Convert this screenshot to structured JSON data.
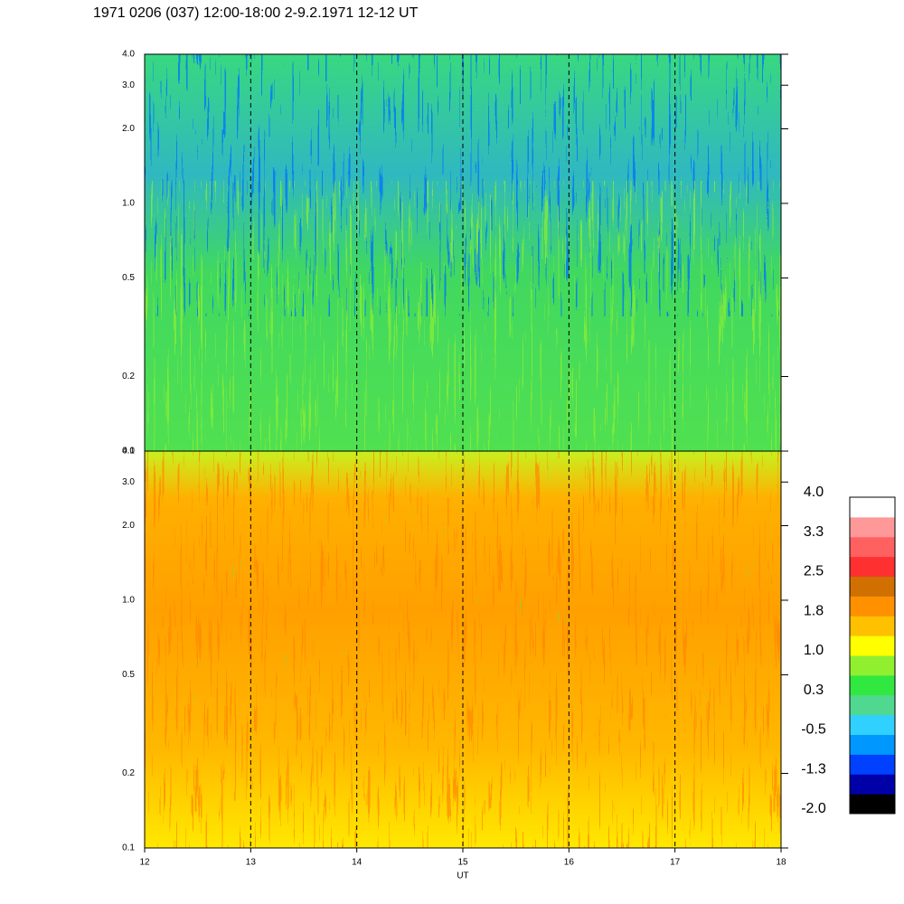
{
  "chart_data": [
    {
      "type": "spectrogram",
      "title": "1971 0206 (037) 12:00-18:00 2-9.2.1971  12-12 UT",
      "y_scale": "log",
      "ylim": [
        0.1,
        4.0
      ],
      "yticks": [
        0.1,
        0.2,
        0.5,
        {
          "value": 1,
          "label": "1.0"
        },
        {
          "value": 2,
          "label": "2.0"
        },
        {
          "value": 3,
          "label": "3.0"
        },
        {
          "value": 4,
          "label": "4.0"
        }
      ]
    },
    {
      "type": "spectrogram",
      "xlabel": "UT",
      "xlim": [
        12,
        18
      ],
      "xticks": [
        12,
        13,
        14,
        15,
        16,
        17,
        18
      ],
      "y_scale": "log",
      "ylim": [
        0.1,
        4.0
      ],
      "yticks": [
        0.1,
        0.2,
        0.5,
        {
          "value": 1,
          "label": "1.0"
        },
        {
          "value": 2,
          "label": "2.0"
        },
        {
          "value": 3,
          "label": "3.0"
        },
        {
          "value": 4,
          "label": "4.0"
        }
      ],
      "colorbar": {
        "lim": [
          -2.0,
          4.0
        ],
        "colors": [
          "#000000",
          "#0000a8",
          "#0040ff",
          "#0098ff",
          "#30d0ff",
          "#50d890",
          "#30e840",
          "#90f030",
          "#ffff00",
          "#ffc000",
          "#ff9000",
          "#d07000",
          "#ff3030",
          "#ff6060",
          "#ff9898",
          "#ffffff"
        ],
        "ticks": [
          {
            "value": -2,
            "label": "-2.0"
          },
          {
            "value": -1.25,
            "label": "-1.3"
          },
          -0.5,
          {
            "value": 0.25,
            "label": "0.3"
          },
          {
            "value": 1,
            "label": "1.0"
          },
          {
            "value": 1.75,
            "label": "1.8"
          },
          2.5,
          {
            "value": 3.25,
            "label": "3.3"
          },
          {
            "value": 4,
            "label": "4.0"
          }
        ]
      }
    }
  ]
}
